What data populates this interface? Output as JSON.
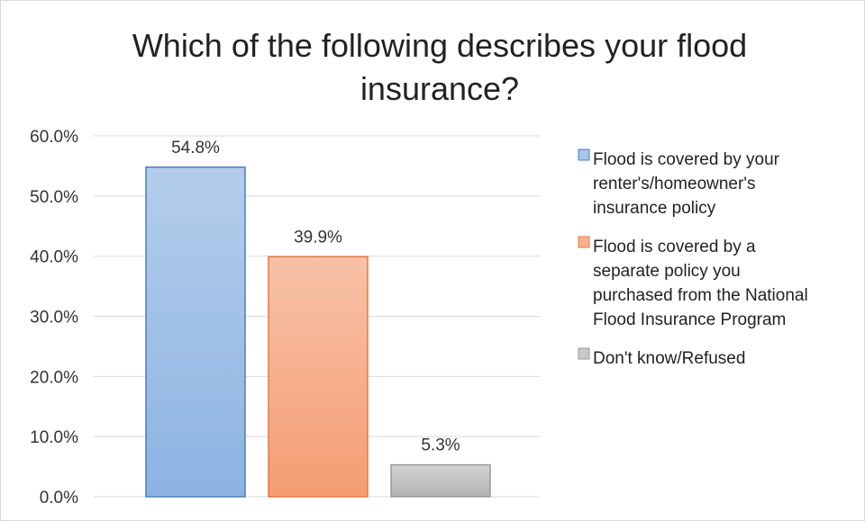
{
  "chart_data": {
    "type": "bar",
    "title_lines": [
      "Which of the following describes your flood",
      "insurance?"
    ],
    "categories": [
      "Flood is covered by your renter's/homeowner's insurance policy",
      "Flood is covered by a separate policy you purchased from the National Flood Insurance Program",
      "Don't know/Refused"
    ],
    "values": [
      54.8,
      39.9,
      5.3
    ],
    "data_labels": [
      "54.8%",
      "39.9%",
      "5.3%"
    ],
    "ylim": [
      0,
      60
    ],
    "yticks": [
      0,
      10,
      20,
      30,
      40,
      50,
      60
    ],
    "ytick_labels": [
      "0.0%",
      "10.0%",
      "20.0%",
      "30.0%",
      "40.0%",
      "50.0%",
      "60.0%"
    ],
    "grid": true,
    "legend_position": "right",
    "legend": [
      {
        "lines": [
          "Flood is covered by your",
          "renter's/homeowner's",
          "insurance policy"
        ],
        "color": "#a9c4e6",
        "edge": "#4a7ebb"
      },
      {
        "lines": [
          "Flood is covered by a",
          "separate policy you",
          "purchased from the National",
          "Flood Insurance Program"
        ],
        "color": "#f6b090",
        "edge": "#e8783e"
      },
      {
        "lines": [
          "Don't know/Refused"
        ],
        "color": "#c8c8c8",
        "edge": "#9a9a9a"
      }
    ]
  }
}
